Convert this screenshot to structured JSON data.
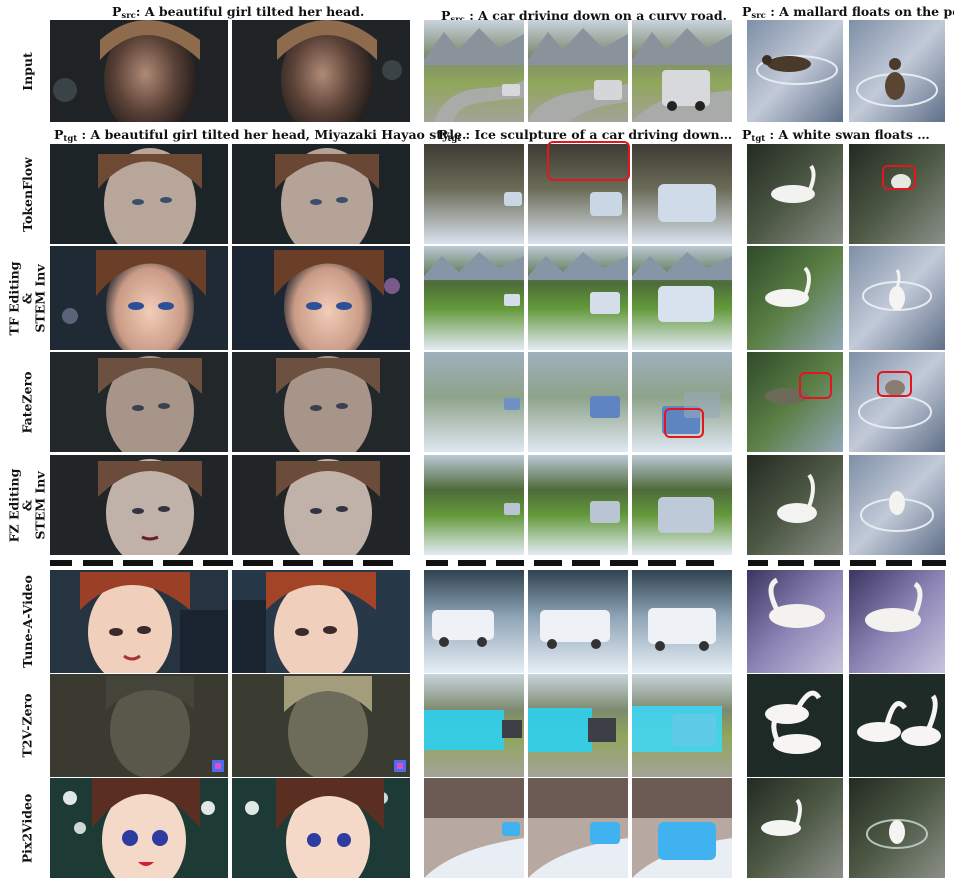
{
  "captions": {
    "col1_src": {
      "p": "P",
      "sub": "src",
      "text": ":  A beautiful girl tilted her head."
    },
    "col2_src": {
      "p": "P",
      "sub": "src",
      "text": " : A car driving down on a curvy road."
    },
    "col3_src": {
      "p": "P",
      "sub": "src",
      "text": " : A mallard floats on the pond."
    },
    "col1_tgt": {
      "p": "P",
      "sub": "tgt",
      "text": " : A beautiful girl tilted her head, Miyazaki Hayao style."
    },
    "col2_tgt": {
      "p": "P",
      "sub": "tgt",
      "text": " : Ice sculpture of a car driving down…"
    },
    "col3_tgt": {
      "p": "P",
      "sub": "tgt",
      "text": " :  A white swan floats …"
    }
  },
  "rows": [
    {
      "label": "Input"
    },
    {
      "label": "TokenFlow"
    },
    {
      "label": "TF Editing\n&\nSTEM Inv"
    },
    {
      "label": "FateZero"
    },
    {
      "label": "FZ Editing\n&\nSTEM Inv"
    },
    {
      "label": "Tune-A-Video"
    },
    {
      "label": "T2V-Zero"
    },
    {
      "label": "Pix2Video"
    }
  ],
  "highlight_color": "#e4161d"
}
